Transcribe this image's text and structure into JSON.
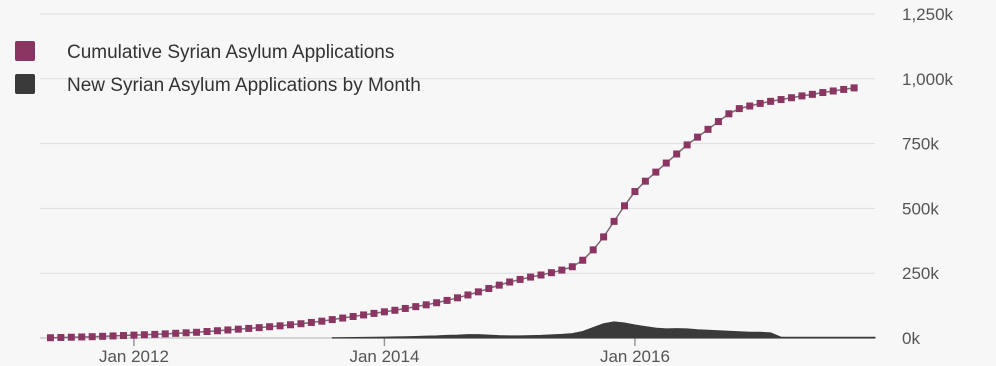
{
  "chart_data": {
    "type": "line",
    "title": "",
    "xlabel": "",
    "ylabel": "",
    "x_ticks": [
      "Jan 2012",
      "Jan 2014",
      "Jan 2016"
    ],
    "y_ticks": [
      "0k",
      "250k",
      "500k",
      "750k",
      "1,000k",
      "1,250k"
    ],
    "ylim": [
      0,
      1250000
    ],
    "xlim": [
      "2011-04",
      "2017-12"
    ],
    "grid": true,
    "legend_position": "top-left",
    "series": [
      {
        "name": "Cumulative Syrian Asylum Applications",
        "type": "line",
        "color": "#8b3563",
        "start": "2011-05",
        "values": [
          1000,
          2000,
          3000,
          4000,
          5000,
          6500,
          8000,
          9500,
          11000,
          12500,
          14000,
          16000,
          18000,
          20000,
          22000,
          25000,
          28000,
          31000,
          34000,
          37000,
          40000,
          43500,
          47000,
          51000,
          55000,
          60000,
          65000,
          71000,
          77000,
          83000,
          89000,
          95000,
          101000,
          107000,
          114000,
          121000,
          128000,
          136000,
          145000,
          155000,
          166000,
          178000,
          191000,
          204000,
          216000,
          226000,
          235000,
          243000,
          252000,
          262000,
          275000,
          300000,
          340000,
          390000,
          450000,
          510000,
          565000,
          605000,
          640000,
          675000,
          710000,
          745000,
          775000,
          805000,
          835000,
          865000,
          885000,
          895000,
          905000,
          913000,
          920000,
          927000,
          934000,
          940000,
          947000,
          953000,
          959000,
          965000
        ]
      },
      {
        "name": "New Syrian Asylum Applications by Month",
        "type": "area",
        "color": "#3a3a3a",
        "start": "2013-08",
        "values": [
          1000,
          1500,
          2000,
          2500,
          3000,
          3500,
          4500,
          5000,
          6000,
          7000,
          8000,
          10000,
          11000,
          13000,
          13000,
          11000,
          9000,
          8000,
          8000,
          9000,
          10000,
          12000,
          14000,
          17000,
          25000,
          40000,
          55000,
          62000,
          58000,
          50000,
          44000,
          38000,
          35000,
          36000,
          35000,
          32000,
          30000,
          28000,
          26000,
          24000,
          22000,
          22000,
          20000,
          3000,
          3000,
          3000,
          3000,
          3000,
          3000,
          3000,
          3000,
          3000,
          3000
        ]
      }
    ]
  }
}
